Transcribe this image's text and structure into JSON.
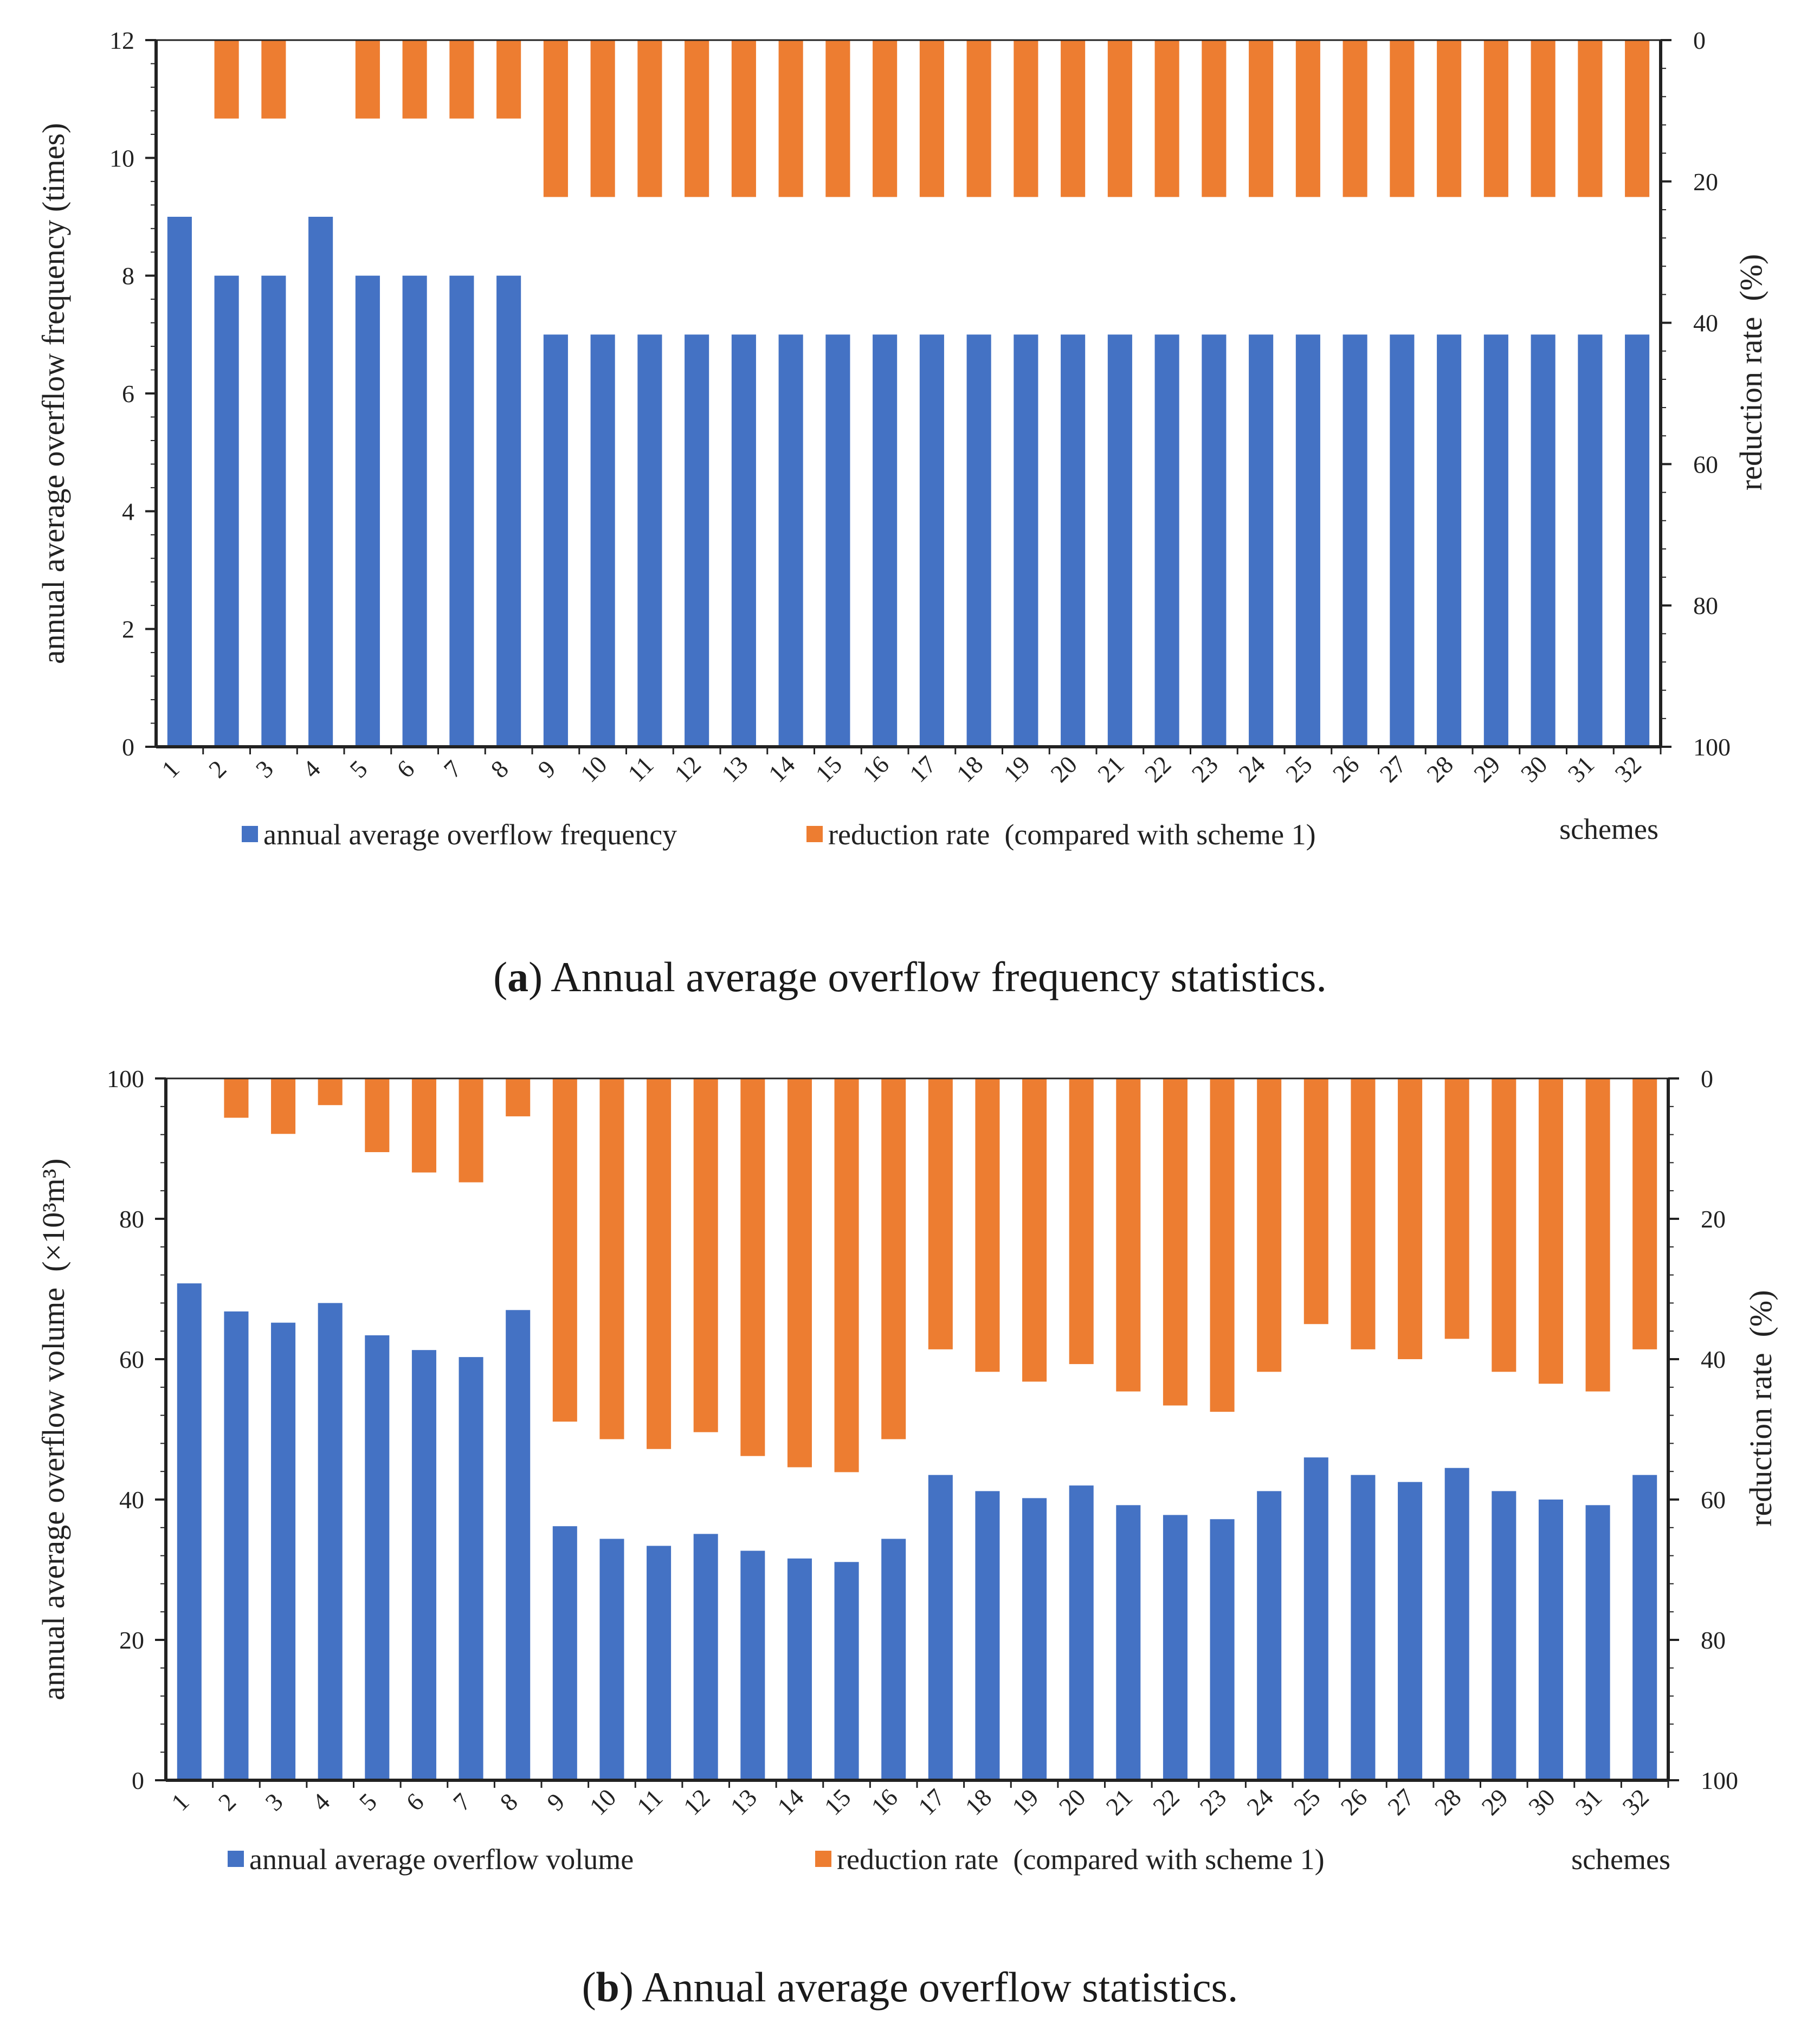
{
  "colors": {
    "primary": "#4472C4",
    "secondary": "#ED7D31",
    "axis": "#222222"
  },
  "chart_data": [
    {
      "type": "bar",
      "title": "Annual average overflow frequency statistics.",
      "caption_label": "a",
      "caption_text": "Annual average overflow frequency statistics.",
      "xlabel": "schemes",
      "ylabel": "annual average overflow frequency (times)",
      "y2label": "reduction rate  (%)",
      "ylim": [
        0,
        12
      ],
      "yticks": [
        0,
        2,
        4,
        6,
        8,
        10,
        12
      ],
      "y2lim": [
        0,
        100
      ],
      "y2ticks": [
        0,
        20,
        40,
        60,
        80,
        100
      ],
      "y2_inverted": true,
      "categories": [
        "1",
        "2",
        "3",
        "4",
        "5",
        "6",
        "7",
        "8",
        "9",
        "10",
        "11",
        "12",
        "13",
        "14",
        "15",
        "16",
        "17",
        "18",
        "19",
        "20",
        "21",
        "22",
        "23",
        "24",
        "25",
        "26",
        "27",
        "28",
        "29",
        "30",
        "31",
        "32"
      ],
      "series": [
        {
          "name": "annual average overflow frequency",
          "axis": "left",
          "values": [
            9,
            8,
            8,
            9,
            8,
            8,
            8,
            8,
            7,
            7,
            7,
            7,
            7,
            7,
            7,
            7,
            7,
            7,
            7,
            7,
            7,
            7,
            7,
            7,
            7,
            7,
            7,
            7,
            7,
            7,
            7,
            7
          ]
        },
        {
          "name": "reduction rate (compared with scheme 1)",
          "axis": "right",
          "values": [
            0,
            11.1,
            11.1,
            0,
            11.1,
            11.1,
            11.1,
            11.1,
            22.2,
            22.2,
            22.2,
            22.2,
            22.2,
            22.2,
            22.2,
            22.2,
            22.2,
            22.2,
            22.2,
            22.2,
            22.2,
            22.2,
            22.2,
            22.2,
            22.2,
            22.2,
            22.2,
            22.2,
            22.2,
            22.2,
            22.2,
            22.2
          ]
        }
      ],
      "legend": [
        "annual average overflow frequency",
        "reduction rate  (compared with scheme 1)"
      ]
    },
    {
      "type": "bar",
      "title": "Annual average overflow statistics.",
      "caption_label": "b",
      "caption_text": "Annual average overflow statistics.",
      "xlabel": "schemes",
      "ylabel": "annual average overflow volume  (×10³m³)",
      "y2label": "reduction rate  (%)",
      "ylim": [
        0,
        100
      ],
      "yticks": [
        0,
        20,
        40,
        60,
        80,
        100
      ],
      "y2lim": [
        0,
        100
      ],
      "y2ticks": [
        0,
        20,
        40,
        60,
        80,
        100
      ],
      "y2_inverted": true,
      "categories": [
        "1",
        "2",
        "3",
        "4",
        "5",
        "6",
        "7",
        "8",
        "9",
        "10",
        "11",
        "12",
        "13",
        "14",
        "15",
        "16",
        "17",
        "18",
        "19",
        "20",
        "21",
        "22",
        "23",
        "24",
        "25",
        "26",
        "27",
        "28",
        "29",
        "30",
        "31",
        "32"
      ],
      "series": [
        {
          "name": "annual average overflow volume",
          "axis": "left",
          "values": [
            70.8,
            66.8,
            65.2,
            68,
            63.4,
            61.3,
            60.3,
            67,
            36.2,
            34.4,
            33.4,
            35.1,
            32.7,
            31.6,
            31.1,
            34.4,
            43.5,
            41.2,
            40.2,
            42,
            39.2,
            37.8,
            37.2,
            41.2,
            46,
            43.5,
            42.5,
            44.5,
            41.2,
            40,
            39.2,
            43.5
          ]
        },
        {
          "name": "reduction rate (compared with scheme 1)",
          "axis": "right",
          "values": [
            0,
            5.6,
            7.9,
            3.8,
            10.5,
            13.4,
            14.8,
            5.4,
            48.9,
            51.4,
            52.8,
            50.4,
            53.8,
            55.4,
            56.1,
            51.4,
            38.6,
            41.8,
            43.2,
            40.7,
            44.6,
            46.6,
            47.5,
            41.8,
            35,
            38.6,
            40,
            37.1,
            41.8,
            43.5,
            44.6,
            38.6
          ]
        }
      ],
      "legend": [
        "annual average overflow volume",
        "reduction rate  (compared with scheme 1)"
      ]
    }
  ]
}
